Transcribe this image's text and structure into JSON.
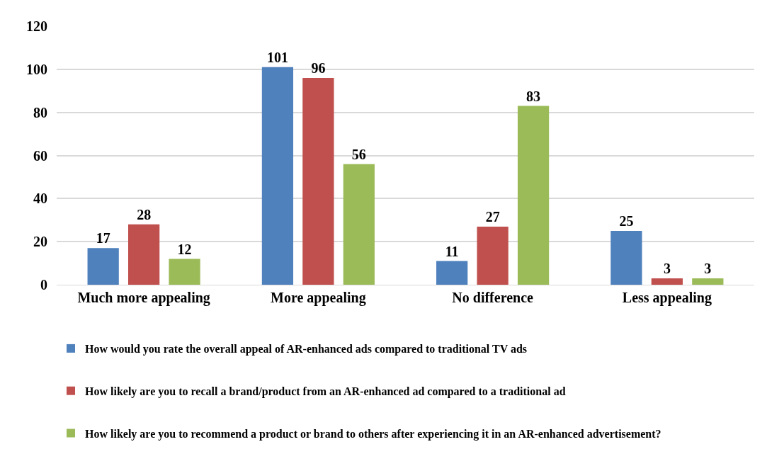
{
  "chart_data": {
    "type": "bar",
    "categories": [
      "Much more appealing",
      "More appealing",
      "No difference",
      "Less appealing"
    ],
    "series": [
      {
        "name": "How would you rate the overall appeal of AR-enhanced ads compared to traditional TV ads",
        "color": "#4f81bd",
        "values": [
          17,
          101,
          11,
          25
        ]
      },
      {
        "name": "How likely are you to recall a brand/product from an AR-enhanced ad compared to a traditional ad",
        "color": "#c0504d",
        "values": [
          28,
          96,
          27,
          3
        ]
      },
      {
        "name": "How likely are you to recommend a product or brand to others after experiencing it in an AR-enhanced advertisement?",
        "color": "#9bbb59",
        "values": [
          12,
          56,
          83,
          3
        ]
      }
    ],
    "ylim": [
      0,
      120
    ],
    "yticks": [
      0,
      20,
      40,
      60,
      80,
      100,
      120
    ],
    "grid": "y",
    "data_labels": true,
    "legend": "bottom"
  }
}
